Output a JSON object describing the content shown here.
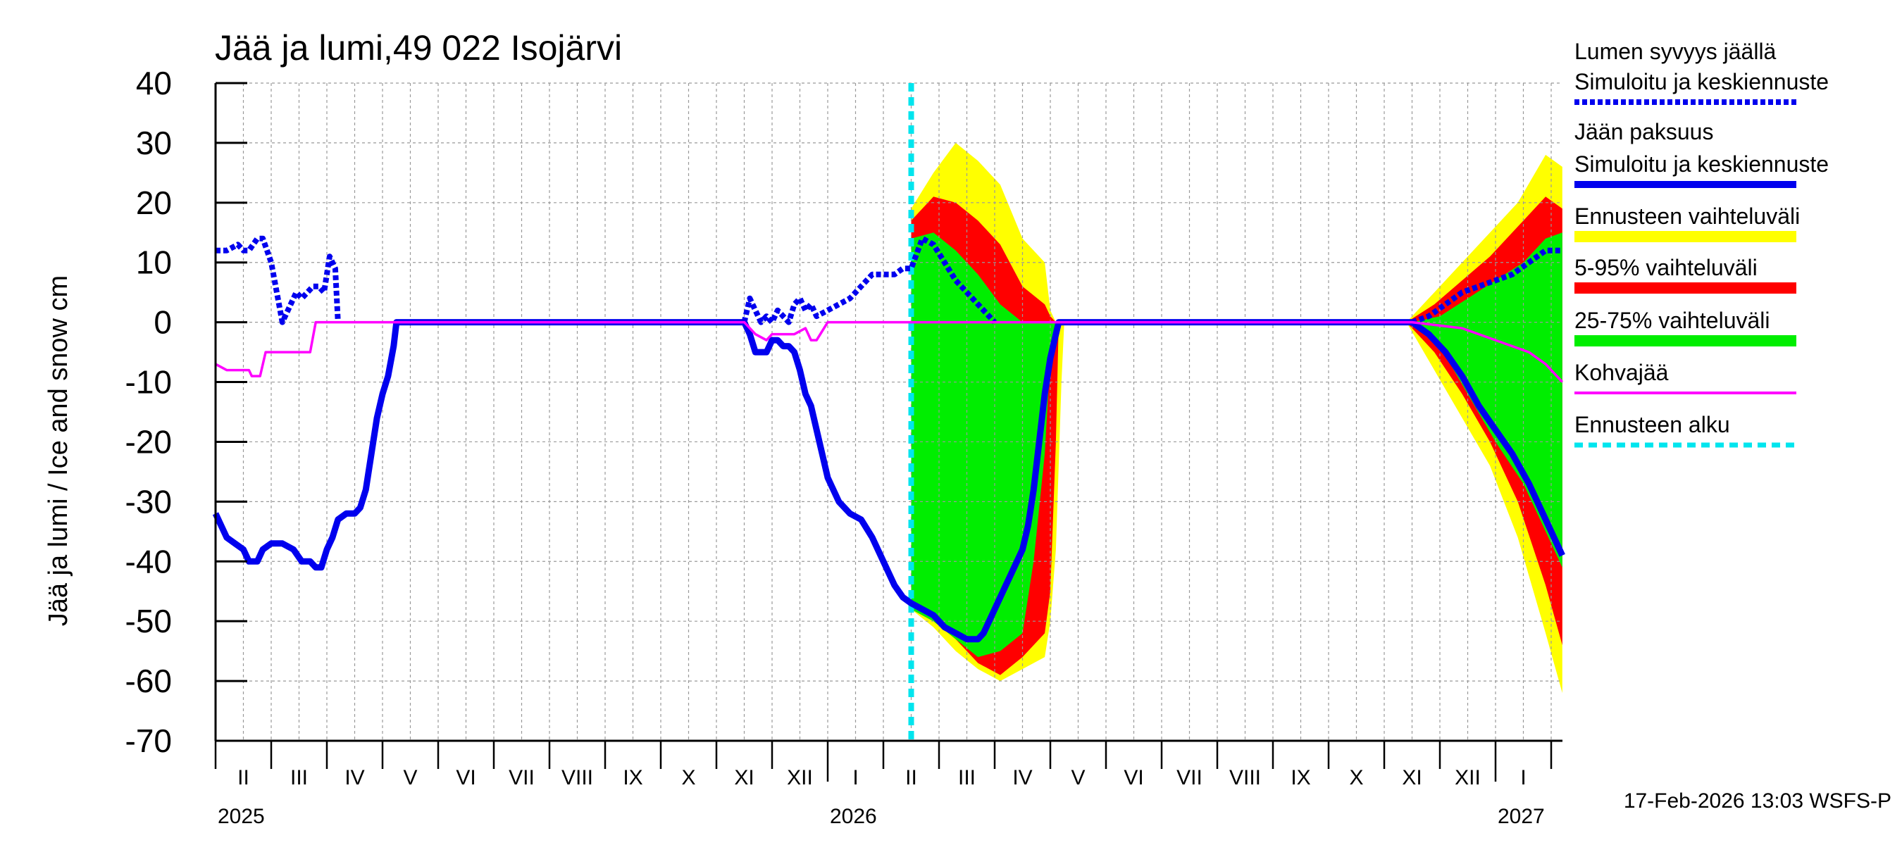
{
  "chart_data": {
    "type": "area",
    "title": "Jää ja lumi,49 022 Isojärvi",
    "ylabel": "Jää ja lumi / Ice and snow    cm",
    "ylim": [
      -70,
      40
    ],
    "yticks": [
      40,
      30,
      20,
      10,
      0,
      -10,
      -20,
      -30,
      -40,
      -50,
      -60,
      -70
    ],
    "x_unit": "month index (0 = 1 Feb 2025)",
    "xlim": [
      0,
      24.2
    ],
    "grid": true,
    "month_labels": [
      {
        "label": "II",
        "x": 0.5
      },
      {
        "label": "III",
        "x": 1.5
      },
      {
        "label": "IV",
        "x": 2.5
      },
      {
        "label": "V",
        "x": 3.5
      },
      {
        "label": "VI",
        "x": 4.5
      },
      {
        "label": "VII",
        "x": 5.5
      },
      {
        "label": "VIII",
        "x": 6.5
      },
      {
        "label": "IX",
        "x": 7.5
      },
      {
        "label": "X",
        "x": 8.5
      },
      {
        "label": "XI",
        "x": 9.5
      },
      {
        "label": "XII",
        "x": 10.5
      },
      {
        "label": "I",
        "x": 11.5
      },
      {
        "label": "II",
        "x": 12.5
      },
      {
        "label": "III",
        "x": 13.5
      },
      {
        "label": "IV",
        "x": 14.5
      },
      {
        "label": "V",
        "x": 15.5
      },
      {
        "label": "VI",
        "x": 16.5
      },
      {
        "label": "VII",
        "x": 17.5
      },
      {
        "label": "VIII",
        "x": 18.5
      },
      {
        "label": "IX",
        "x": 19.5
      },
      {
        "label": "X",
        "x": 20.5
      },
      {
        "label": "XI",
        "x": 21.5
      },
      {
        "label": "XII",
        "x": 22.5
      },
      {
        "label": "I",
        "x": 23.5
      }
    ],
    "year_labels": [
      {
        "label": "2025",
        "x": 0
      },
      {
        "label": "2026",
        "x": 11
      },
      {
        "label": "2027",
        "x": 23
      }
    ],
    "forecast_start_x": 12.5,
    "legend": [
      {
        "label": "Lumen syvyys jäällä",
        "color": "",
        "style": "none"
      },
      {
        "label": "Simuloitu ja keskiennuste",
        "color": "#0000ee",
        "style": "dotted"
      },
      {
        "label": "Jään paksuus",
        "color": "",
        "style": "none"
      },
      {
        "label": "Simuloitu ja keskiennuste",
        "color": "#0000ee",
        "style": "solid"
      },
      {
        "label": "Ennusteen vaihteluväli",
        "color": "#ffff00",
        "style": "solid"
      },
      {
        "label": "5-95% vaihteluväli",
        "color": "#ff0000",
        "style": "solid"
      },
      {
        "label": "25-75% vaihteluväli",
        "color": "#00ee00",
        "style": "solid"
      },
      {
        "label": "Kohvajää",
        "color": "#ff00ff",
        "style": "solid"
      },
      {
        "label": "Ennusteen alku",
        "color": "#00e5ee",
        "style": "dashed"
      }
    ],
    "series": [
      {
        "name": "Lumen syvyys jäällä (simuloitu)",
        "color": "#0000ee",
        "style": "dotted",
        "x": [
          0,
          0.2,
          0.4,
          0.5,
          0.6,
          0.75,
          0.85,
          1.0,
          1.2,
          1.3,
          1.45,
          1.55,
          1.75,
          1.85,
          1.95,
          2.05,
          2.15,
          2.2
        ],
        "y": [
          12,
          12,
          13,
          12,
          12,
          14,
          14,
          10,
          0,
          2,
          5,
          4,
          6,
          6,
          5,
          11,
          9,
          0
        ]
      },
      {
        "name": "Lumen syvyys jäällä (alkutalvi)",
        "color": "#0000ee",
        "style": "dotted",
        "x": [
          9.5,
          9.6,
          9.7,
          9.8,
          9.9,
          10.0,
          10.1,
          10.2,
          10.3,
          10.4,
          10.5,
          10.6,
          10.7,
          10.8,
          11.0,
          11.2,
          11.4,
          11.6,
          11.8,
          12.0,
          12.2,
          12.35,
          12.5,
          12.7,
          12.9,
          13.1,
          13.3,
          13.5,
          13.7,
          13.9,
          14.0
        ],
        "y": [
          0,
          4,
          2,
          0,
          1,
          0,
          2,
          1,
          0,
          3,
          4,
          2,
          3,
          1,
          2,
          3,
          4,
          6,
          8,
          8,
          8,
          9,
          9,
          14,
          13,
          10,
          7,
          5,
          3,
          1,
          0
        ]
      },
      {
        "name": "Lumen syvyys jäällä (ennuste 2027)",
        "color": "#0000ee",
        "style": "dotted",
        "x": [
          21.5,
          21.8,
          22.1,
          22.4,
          22.7,
          23.0,
          23.3,
          23.6,
          23.9,
          24.2
        ],
        "y": [
          0,
          1,
          3,
          5,
          6,
          7,
          8,
          10,
          12,
          12
        ]
      },
      {
        "name": "Jään paksuus",
        "color": "#0000ee",
        "style": "solid",
        "x": [
          0,
          0.1,
          0.2,
          0.35,
          0.5,
          0.6,
          0.75,
          0.85,
          1.0,
          1.2,
          1.4,
          1.55,
          1.7,
          1.8,
          1.9,
          2.0,
          2.1,
          2.2,
          2.35,
          2.5,
          2.6,
          2.7,
          2.8,
          2.9,
          3.0,
          3.1,
          3.2,
          3.25,
          9.5,
          9.6,
          9.7,
          9.8,
          9.9,
          10.0,
          10.1,
          10.2,
          10.3,
          10.4,
          10.5,
          10.6,
          10.7,
          10.8,
          10.9,
          11.0,
          11.2,
          11.4,
          11.6,
          11.8,
          12.0,
          12.2,
          12.35,
          12.5,
          12.7,
          12.9,
          13.1,
          13.3,
          13.5,
          13.7,
          13.8,
          13.9,
          14.0,
          14.1,
          14.2,
          14.3,
          14.4,
          14.5,
          14.6,
          14.7,
          14.8,
          14.9,
          15.0,
          15.1,
          15.15,
          21.5,
          21.8,
          22.1,
          22.4,
          22.7,
          23.0,
          23.3,
          23.6,
          23.9,
          24.2
        ],
        "y": [
          -32,
          -34,
          -36,
          -37,
          -38,
          -40,
          -40,
          -38,
          -37,
          -37,
          -38,
          -40,
          -40,
          -41,
          -41,
          -38,
          -36,
          -33,
          -32,
          -32,
          -31,
          -28,
          -22,
          -16,
          -12,
          -9,
          -4,
          0,
          0,
          -2,
          -5,
          -5,
          -5,
          -3,
          -3,
          -4,
          -4,
          -5,
          -8,
          -12,
          -14,
          -18,
          -22,
          -26,
          -30,
          -32,
          -33,
          -36,
          -40,
          -44,
          -46,
          -47,
          -48,
          -49,
          -51,
          -52,
          -53,
          -53,
          -52,
          -50,
          -48,
          -46,
          -44,
          -42,
          -40,
          -38,
          -34,
          -28,
          -20,
          -12,
          -6,
          -2,
          0,
          0,
          -2,
          -5,
          -9,
          -14,
          -18,
          -22,
          -27,
          -33,
          -39
        ]
      },
      {
        "name": "Kohvajää",
        "color": "#ff00ff",
        "style": "solid",
        "x": [
          0,
          0.2,
          0.4,
          0.5,
          0.6,
          0.65,
          0.75,
          0.8,
          0.9,
          1.1,
          1.4,
          1.7,
          1.8,
          9.5,
          9.7,
          9.9,
          10.0,
          10.2,
          10.4,
          10.6,
          10.7,
          10.8,
          11.0,
          11.2,
          11.5,
          12.0,
          12.5,
          21.5,
          22.4,
          23.0,
          23.3,
          23.6,
          23.9,
          24.2
        ],
        "y": [
          -7,
          -8,
          -8,
          -8,
          -8,
          -9,
          -9,
          -9,
          -5,
          -5,
          -5,
          -5,
          0,
          0,
          -2,
          -3,
          -2,
          -2,
          -2,
          -1,
          -3,
          -3,
          0,
          0,
          0,
          0,
          0,
          0,
          -1,
          -3,
          -4,
          -5,
          -7,
          -10
        ]
      }
    ],
    "bands": [
      {
        "name": "Ennusteen vaihteluväli",
        "color": "#ffff00",
        "x": [
          12.5,
          12.9,
          13.3,
          13.7,
          14.1,
          14.5,
          14.9,
          15.0,
          15.1,
          15.2,
          15.25,
          21.4,
          21.9,
          22.4,
          22.9,
          23.4,
          23.9,
          24.2
        ],
        "upper": [
          19,
          25,
          30,
          27,
          23,
          14,
          10,
          2,
          0,
          0,
          0,
          0,
          5,
          10,
          15,
          20,
          28,
          26
        ],
        "lower": [
          -48,
          -51,
          -55,
          -58,
          -60,
          -58,
          -56,
          -50,
          -38,
          -10,
          0,
          0,
          -8,
          -16,
          -24,
          -36,
          -52,
          -62
        ]
      },
      {
        "name": "5-95% vaihteluväli",
        "color": "#ff0000",
        "x": [
          12.5,
          12.9,
          13.3,
          13.7,
          14.1,
          14.5,
          14.9,
          15.0,
          15.1,
          15.15,
          21.4,
          21.9,
          22.4,
          22.9,
          23.4,
          23.9,
          24.2
        ],
        "upper": [
          17,
          21,
          20,
          17,
          13,
          6,
          3,
          1,
          0,
          0,
          0,
          3,
          7,
          11,
          16,
          21,
          19
        ],
        "lower": [
          -48,
          -50,
          -53,
          -57,
          -59,
          -56,
          -52,
          -45,
          -20,
          0,
          0,
          -5,
          -12,
          -20,
          -30,
          -44,
          -54
        ]
      },
      {
        "name": "25-75% vaihteluväli",
        "color": "#00ee00",
        "x": [
          12.5,
          12.9,
          13.3,
          13.7,
          14.1,
          14.5,
          14.7,
          14.9,
          15.0,
          15.1,
          21.5,
          22.0,
          22.5,
          23.0,
          23.5,
          23.9,
          24.2
        ],
        "upper": [
          14,
          15,
          12,
          8,
          3,
          0,
          0,
          0,
          0,
          0,
          0,
          1,
          4,
          7,
          10,
          14,
          15
        ],
        "lower": [
          -48,
          -50,
          -53,
          -56,
          -55,
          -52,
          -40,
          -22,
          -6,
          0,
          0,
          -4,
          -12,
          -20,
          -27,
          -35,
          -41
        ]
      }
    ],
    "footer": "17-Feb-2026 13:03 WSFS-P"
  }
}
